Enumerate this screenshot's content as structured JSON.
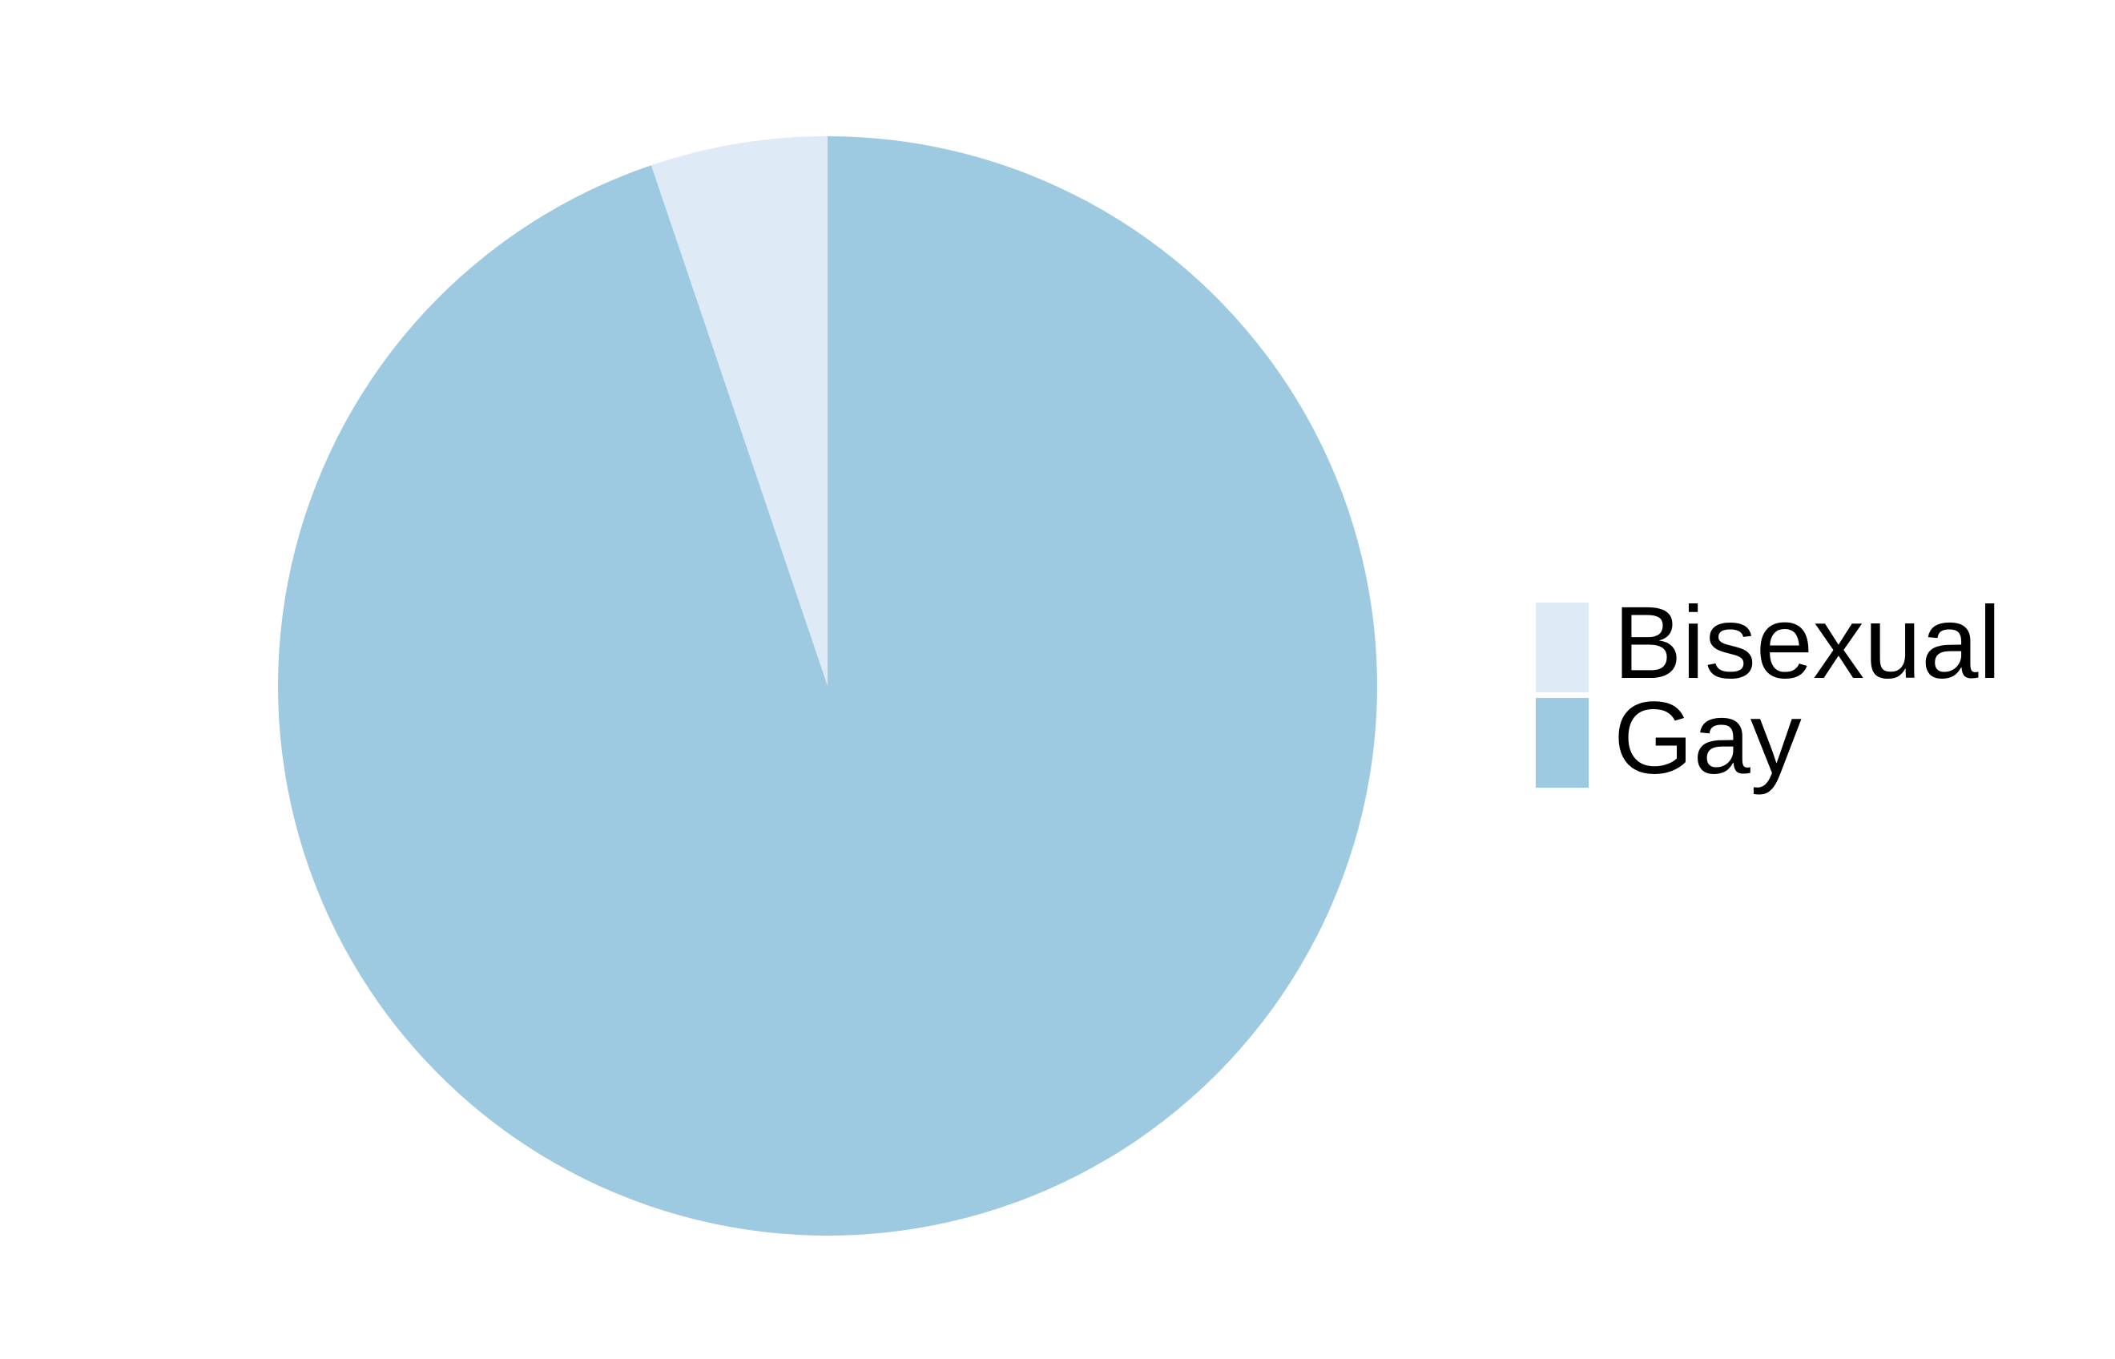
{
  "chart_data": {
    "type": "pie",
    "categories": [
      "Bisexual",
      "Gay"
    ],
    "values": [
      5.2,
      94.8
    ],
    "colors": [
      "#deebf7",
      "#9ecae1"
    ],
    "legend": "right"
  }
}
